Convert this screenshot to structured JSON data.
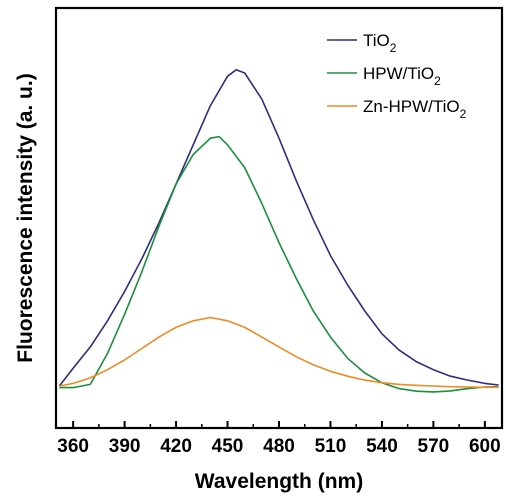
{
  "chart_data": {
    "type": "line",
    "xlabel": "Wavelength (nm)",
    "ylabel": "Fluorescence intensity (a. u.)",
    "xlim": [
      350,
      610
    ],
    "ylim": [
      0,
      1
    ],
    "x_ticks": [
      360,
      390,
      420,
      450,
      480,
      510,
      540,
      570,
      600
    ],
    "y_ticks_shown": false,
    "legend_position": "top-right",
    "series": [
      {
        "name": "TiO2",
        "name_base": "TiO",
        "name_sub": "2",
        "color": "#2e2d7f",
        "x": [
          352,
          360,
          370,
          380,
          390,
          400,
          410,
          420,
          430,
          440,
          450,
          455,
          460,
          470,
          480,
          490,
          500,
          510,
          520,
          530,
          540,
          550,
          560,
          570,
          580,
          590,
          600,
          608
        ],
        "y": [
          0.0,
          0.055,
          0.12,
          0.2,
          0.29,
          0.39,
          0.5,
          0.62,
          0.74,
          0.86,
          0.95,
          0.97,
          0.96,
          0.88,
          0.76,
          0.63,
          0.51,
          0.4,
          0.31,
          0.23,
          0.16,
          0.11,
          0.075,
          0.05,
          0.03,
          0.018,
          0.008,
          0.003
        ]
      },
      {
        "name": "HPW/TiO2",
        "name_base": "HPW/TiO",
        "name_sub": "2",
        "color": "#1a8f3c",
        "x": [
          352,
          360,
          370,
          380,
          390,
          400,
          410,
          420,
          430,
          440,
          445,
          450,
          460,
          470,
          480,
          490,
          500,
          510,
          520,
          530,
          540,
          550,
          560,
          570,
          580,
          590,
          600,
          608
        ],
        "y": [
          -0.005,
          -0.005,
          0.005,
          0.1,
          0.22,
          0.35,
          0.49,
          0.62,
          0.71,
          0.76,
          0.765,
          0.74,
          0.67,
          0.56,
          0.44,
          0.33,
          0.23,
          0.15,
          0.085,
          0.04,
          0.01,
          -0.008,
          -0.016,
          -0.018,
          -0.015,
          -0.008,
          -0.003,
          -0.002
        ]
      },
      {
        "name": "Zn-HPW/TiO2",
        "name_base": "Zn-HPW/TiO",
        "name_sub": "2",
        "color": "#f08a24",
        "x": [
          352,
          360,
          370,
          380,
          390,
          400,
          410,
          420,
          430,
          440,
          450,
          460,
          470,
          480,
          490,
          500,
          510,
          520,
          530,
          540,
          550,
          560,
          570,
          580,
          590,
          600,
          608
        ],
        "y": [
          0.0,
          0.008,
          0.025,
          0.05,
          0.08,
          0.115,
          0.15,
          0.18,
          0.2,
          0.21,
          0.2,
          0.18,
          0.15,
          0.12,
          0.09,
          0.065,
          0.045,
          0.03,
          0.018,
          0.01,
          0.005,
          0.002,
          0.0,
          -0.002,
          -0.003,
          -0.004,
          -0.004
        ]
      }
    ]
  }
}
